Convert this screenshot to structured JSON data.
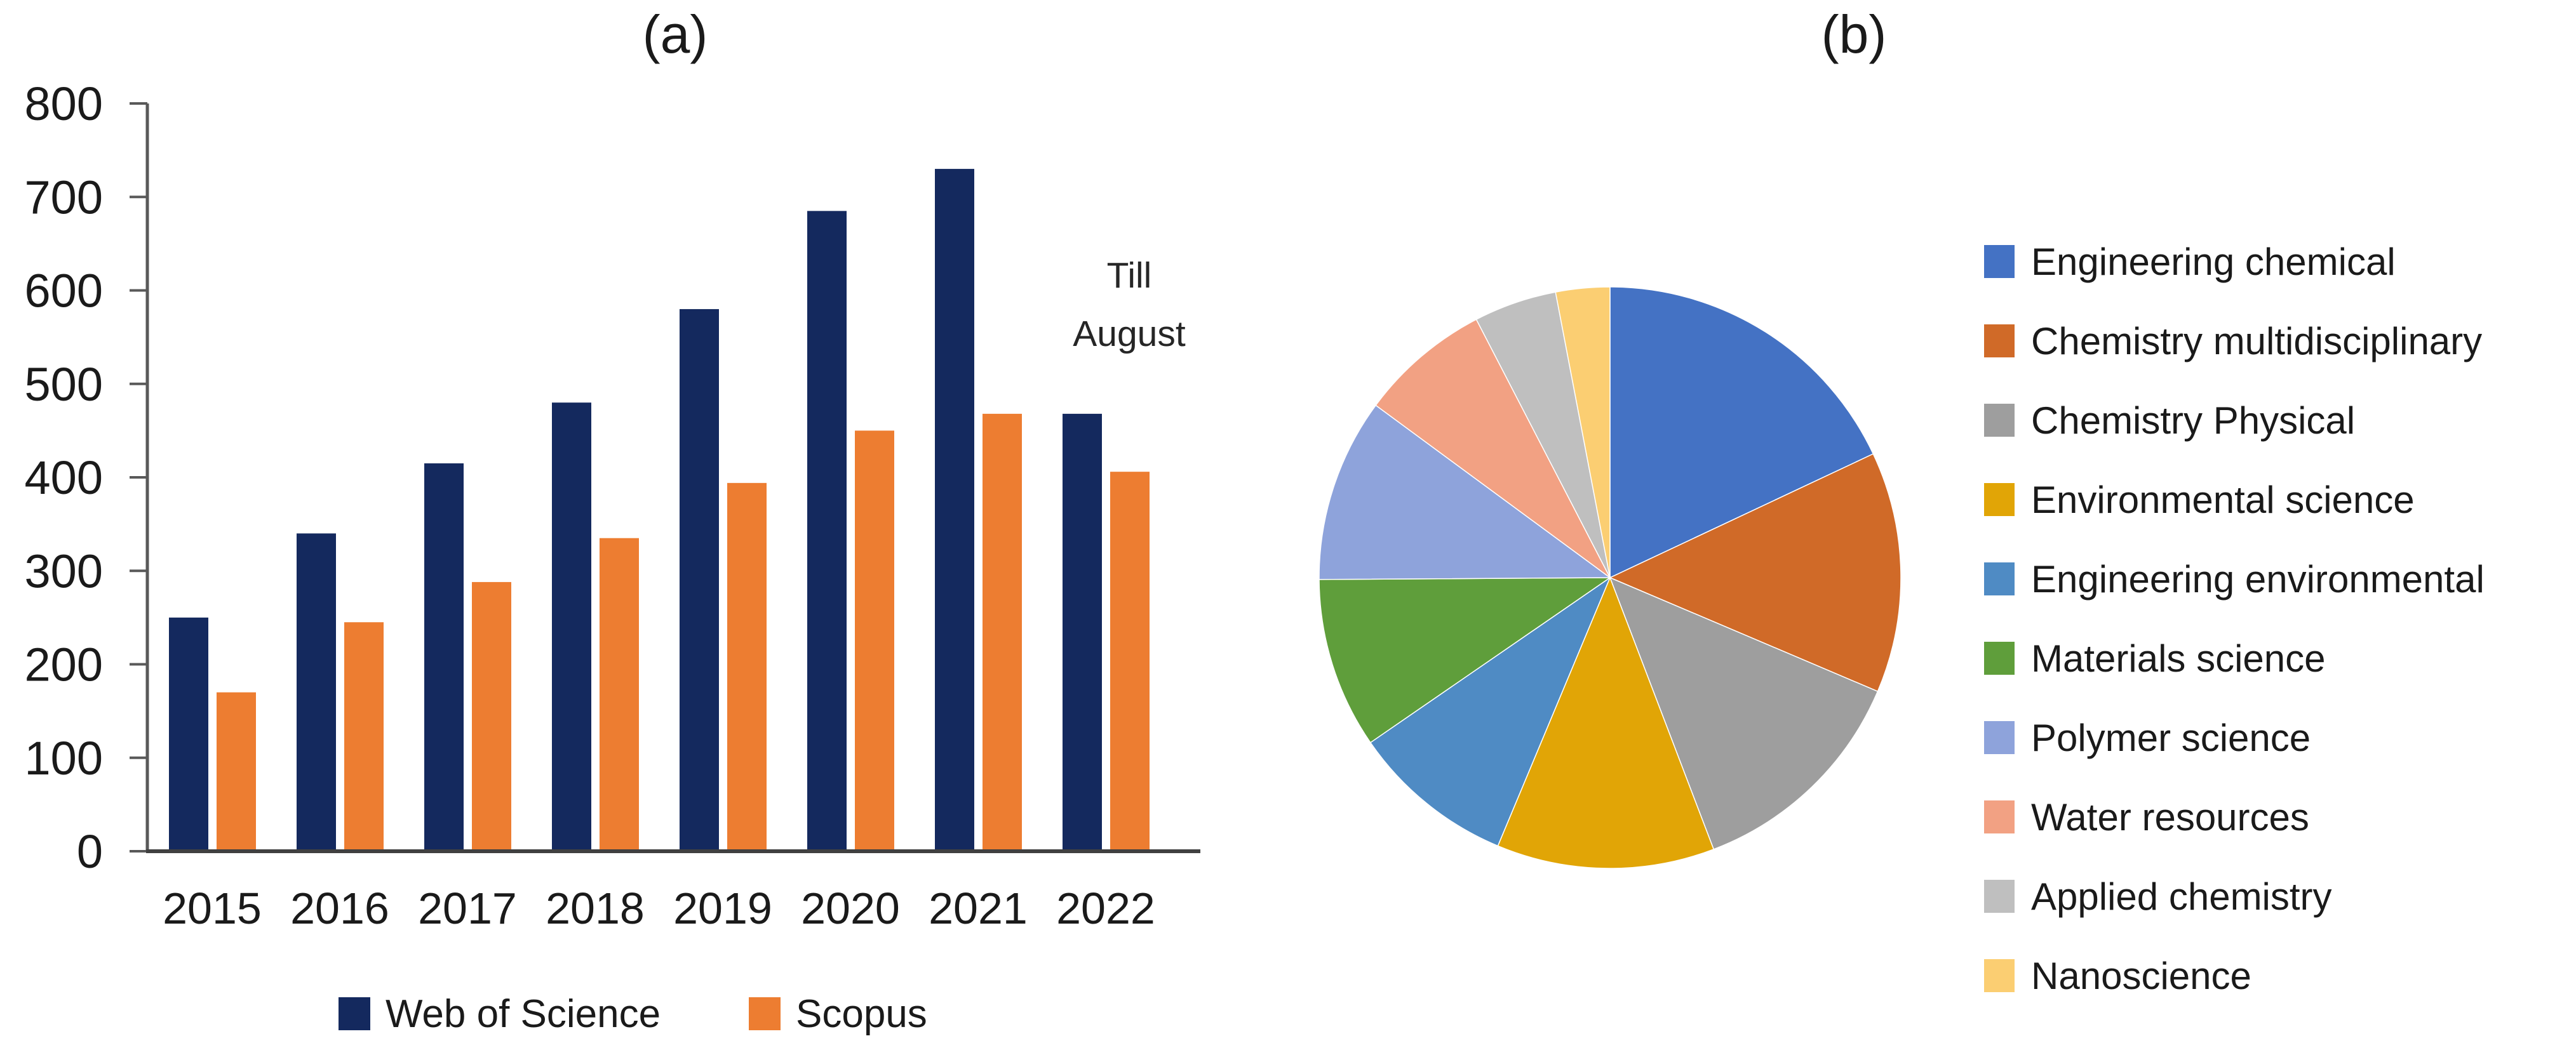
{
  "panel_a": {
    "title": "(a)",
    "annotation": {
      "line1": "Till",
      "line2": "August"
    }
  },
  "panel_b": {
    "title": "(b)"
  },
  "colors": {
    "axis": "#595959",
    "baseline": "#404040",
    "text": "#1a1a1a",
    "background": "#ffffff"
  },
  "chart_data": [
    {
      "type": "bar",
      "title": "(a)",
      "categories": [
        "2015",
        "2016",
        "2017",
        "2018",
        "2019",
        "2020",
        "2021",
        "2022"
      ],
      "series": [
        {
          "name": "Web of Science",
          "color": "#14295E",
          "values": [
            250,
            340,
            415,
            480,
            580,
            685,
            730,
            468
          ]
        },
        {
          "name": "Scopus",
          "color": "#ED7D31",
          "values": [
            170,
            245,
            288,
            335,
            394,
            450,
            468,
            406
          ]
        }
      ],
      "xlabel": "",
      "ylabel": "",
      "ylim": [
        0,
        800
      ],
      "ytick_step": 100,
      "grid": false,
      "legend_position": "bottom",
      "annotation": "Till August"
    },
    {
      "type": "pie",
      "title": "(b)",
      "labels": [
        "Engineering chemical",
        "Chemistry multidisciplinary",
        "Chemistry Physical",
        "Environmental science",
        "Engineering environmental",
        "Materials science",
        "Polymer science",
        "Water resources",
        "Applied chemistry",
        "Nanoscience"
      ],
      "values": [
        18.0,
        13.4,
        12.8,
        12.1,
        9.1,
        9.5,
        10.2,
        7.3,
        4.6,
        3.0
      ],
      "unit": "percent",
      "colors": [
        "#4472C4",
        "#D06A28",
        "#9E9E9E",
        "#E1A506",
        "#4F8BC4",
        "#5F9E3B",
        "#8EA3DB",
        "#F2A183",
        "#BFBFBF",
        "#FBCE72"
      ],
      "start_angle_deg": 0,
      "direction": "clockwise",
      "legend_position": "right"
    }
  ]
}
